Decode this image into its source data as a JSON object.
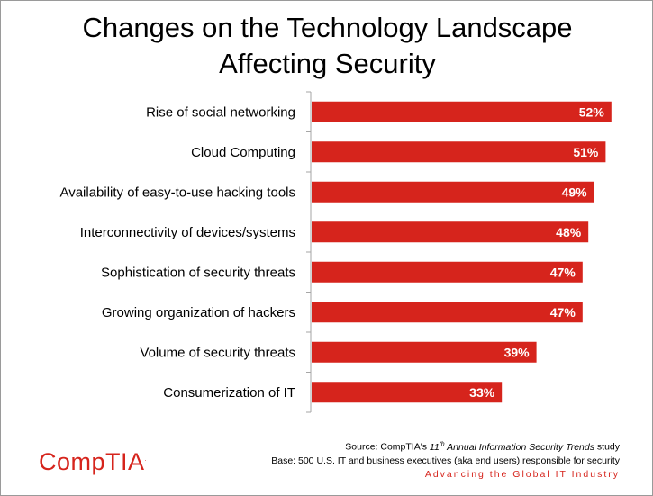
{
  "title": {
    "line1": "Changes on the Technology Landscape",
    "line2": "Affecting Security"
  },
  "chart_data": {
    "type": "bar",
    "orientation": "horizontal",
    "title": "Changes on the Technology Landscape Affecting Security",
    "categories": [
      "Rise of social networking",
      "Cloud Computing",
      "Availability of easy-to-use hacking tools",
      "Interconnectivity of devices/systems",
      "Sophistication of security threats",
      "Growing organization of hackers",
      "Volume of security threats",
      "Consumerization of IT"
    ],
    "values": [
      52,
      51,
      49,
      48,
      47,
      47,
      39,
      33
    ],
    "value_labels": [
      "52%",
      "51%",
      "49%",
      "48%",
      "47%",
      "47%",
      "39%",
      "33%"
    ],
    "unit": "%",
    "xlim": [
      0,
      60
    ],
    "grid": false,
    "bar_color": "#d6241c"
  },
  "source": {
    "prefix": "Source: CompTIA's ",
    "ordinal": "11",
    "ordinal_suffix": "th",
    "study": " Annual Information Security Trends",
    "suffix": " study",
    "base": "Base: 500 U.S. IT and business executives (aka end users) responsible for security"
  },
  "tagline": "Advancing the Global IT Industry",
  "logo": {
    "text": "CompTIA",
    "mark": "."
  },
  "colors": {
    "accent": "#d6241c",
    "axis": "#a6a6a6"
  }
}
